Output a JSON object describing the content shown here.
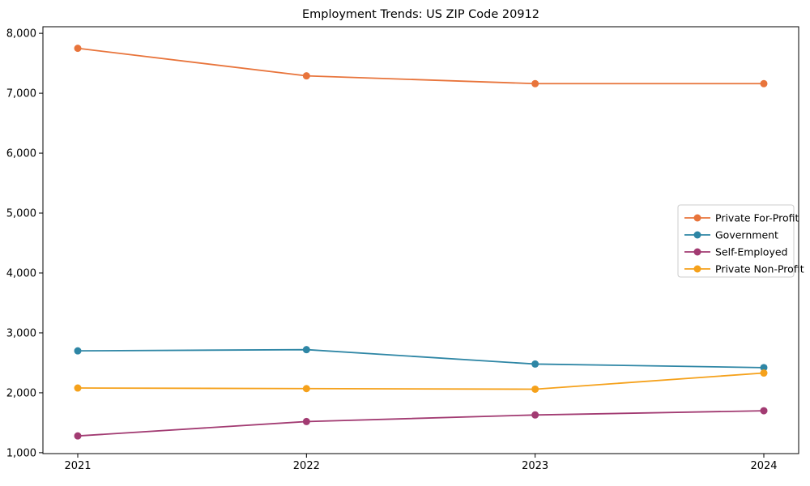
{
  "chart_data": {
    "type": "line",
    "title": "Employment Trends: US ZIP Code 20912",
    "categories": [
      "2021",
      "2022",
      "2023",
      "2024"
    ],
    "series": [
      {
        "name": "Private For-Profit",
        "color": "#E8743B",
        "values": [
          7750,
          7290,
          7160,
          7160
        ]
      },
      {
        "name": "Government",
        "color": "#2E86A5",
        "values": [
          2700,
          2720,
          2480,
          2420
        ]
      },
      {
        "name": "Self-Employed",
        "color": "#A23B72",
        "values": [
          1280,
          1520,
          1630,
          1700
        ]
      },
      {
        "name": "Private Non-Profit",
        "color": "#F5A11B",
        "values": [
          2080,
          2070,
          2060,
          2330
        ]
      }
    ],
    "xlabel": "",
    "ylabel": "",
    "ylim": [
      985,
      8110
    ],
    "yticks": [
      1000,
      2000,
      3000,
      4000,
      5000,
      6000,
      7000,
      8000
    ],
    "ytick_format": "thousands-comma",
    "grid": false,
    "legend_position": "center-right",
    "marker": "circle",
    "axis_color": "#000000",
    "legend_border_color": "#cccccc",
    "background": "#FFFFFF"
  }
}
